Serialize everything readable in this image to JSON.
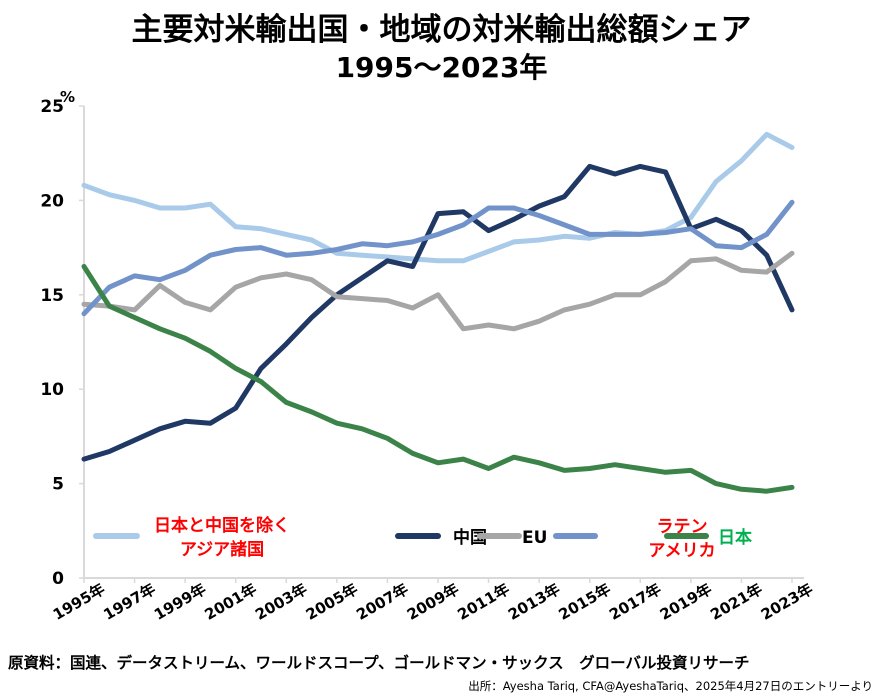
{
  "chart_data": {
    "type": "line",
    "title": "主要対米輸出国・地域の対米輸出総額シェア",
    "subtitle": "1995～2023年",
    "xlabel": "",
    "ylabel": "%",
    "ylim": [
      0,
      25
    ],
    "yticks": [
      "0",
      "5",
      "10",
      "15",
      "20",
      "25"
    ],
    "ytick_values": [
      0,
      5,
      10,
      15,
      20,
      25
    ],
    "x": [
      1995,
      1996,
      1997,
      1998,
      1999,
      2000,
      2001,
      2002,
      2003,
      2004,
      2005,
      2006,
      2007,
      2008,
      2009,
      2010,
      2011,
      2012,
      2013,
      2014,
      2015,
      2016,
      2017,
      2018,
      2019,
      2020,
      2021,
      2022,
      2023
    ],
    "xtick_labels": [
      "1995年",
      "1997年",
      "1999年",
      "2001年",
      "2003年",
      "2005年",
      "2007年",
      "2009年",
      "2011年",
      "2013年",
      "2015年",
      "2017年",
      "2019年",
      "2021年",
      "2023年"
    ],
    "grid": false,
    "legend_position": "bottom-inside",
    "series": [
      {
        "name": "日本と中国を除くアジア諸国",
        "legend_line1": "日本と中国を除く",
        "legend_line2": "アジア諸国",
        "color": "#a9cbe9",
        "label_color": "#ff0000",
        "values": [
          20.8,
          20.3,
          20.0,
          19.6,
          19.6,
          19.8,
          18.6,
          18.5,
          18.2,
          17.9,
          17.2,
          17.1,
          17.0,
          16.9,
          16.8,
          16.8,
          17.3,
          17.8,
          17.9,
          18.1,
          18.0,
          18.3,
          18.2,
          18.4,
          19.1,
          21.0,
          22.1,
          23.5,
          22.8
        ]
      },
      {
        "name": "中国",
        "legend_line1": "中国",
        "legend_line2": "",
        "color": "#1f3864",
        "label_color": "#000000",
        "values": [
          6.3,
          6.7,
          7.3,
          7.9,
          8.3,
          8.2,
          9.0,
          11.1,
          12.4,
          13.8,
          15.0,
          15.9,
          16.8,
          16.5,
          19.3,
          19.4,
          18.4,
          19.0,
          19.7,
          20.2,
          21.8,
          21.4,
          21.8,
          21.5,
          18.5,
          19.0,
          18.4,
          17.1,
          14.2
        ]
      },
      {
        "name": "EU",
        "legend_line1": "EU",
        "legend_line2": "",
        "color": "#a6a6a6",
        "label_color": "#000000",
        "values": [
          14.5,
          14.4,
          14.2,
          15.5,
          14.6,
          14.2,
          15.4,
          15.9,
          16.1,
          15.8,
          14.9,
          14.8,
          14.7,
          14.3,
          15.0,
          13.2,
          13.4,
          13.2,
          13.6,
          14.2,
          14.5,
          15.0,
          15.0,
          15.7,
          16.8,
          16.9,
          16.3,
          16.2,
          17.2
        ]
      },
      {
        "name": "ラテンアメリカ",
        "legend_line1": "ラテン",
        "legend_line2": "アメリカ",
        "color": "#7293c9",
        "label_color": "#ff0000",
        "values": [
          14.0,
          15.4,
          16.0,
          15.8,
          16.3,
          17.1,
          17.4,
          17.5,
          17.1,
          17.2,
          17.4,
          17.7,
          17.6,
          17.8,
          18.2,
          18.7,
          19.6,
          19.6,
          19.2,
          18.7,
          18.2,
          18.2,
          18.2,
          18.3,
          18.5,
          17.6,
          17.5,
          18.2,
          19.9
        ]
      },
      {
        "name": "日本",
        "legend_line1": "日本",
        "legend_line2": "",
        "color": "#3b8348",
        "label_color": "#00b050",
        "values": [
          16.5,
          14.4,
          13.8,
          13.2,
          12.7,
          12.0,
          11.1,
          10.4,
          9.3,
          8.8,
          8.2,
          7.9,
          7.4,
          6.6,
          6.1,
          6.3,
          5.8,
          6.4,
          6.1,
          5.7,
          5.8,
          6.0,
          5.8,
          5.6,
          5.7,
          5.0,
          4.7,
          4.6,
          4.8
        ]
      }
    ]
  },
  "footer": {
    "source": "原資料：国連、データストリーム、ワールドスコープ、ゴールドマン・サックス　グローバル投資リサーチ",
    "citation": "出所：Ayesha Tariq, CFA@AyeshaTariq、2025年4月27日のエントリーより"
  }
}
